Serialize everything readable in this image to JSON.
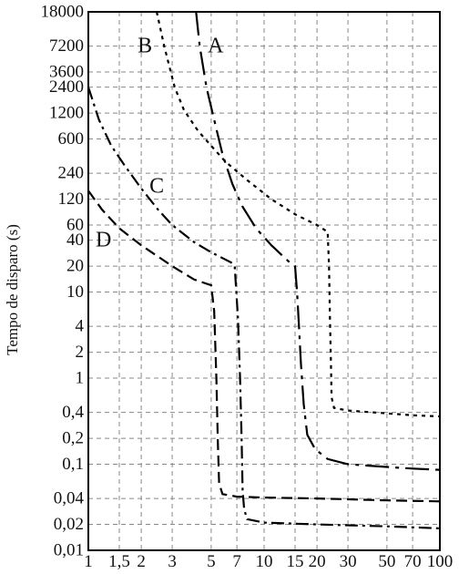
{
  "chart_data": {
    "type": "line",
    "title": "",
    "xlabel": "",
    "ylabel": "Tempo de disparo (s)",
    "xscale": "log",
    "yscale": "log",
    "xlim": [
      1,
      100
    ],
    "ylim": [
      0.01,
      18000
    ],
    "grid": true,
    "x_ticks": [
      {
        "v": 1,
        "label": "1"
      },
      {
        "v": 1.5,
        "label": "1,5"
      },
      {
        "v": 2,
        "label": "2"
      },
      {
        "v": 3,
        "label": "3"
      },
      {
        "v": 5,
        "label": "5"
      },
      {
        "v": 7,
        "label": "7"
      },
      {
        "v": 10,
        "label": "10"
      },
      {
        "v": 15,
        "label": "15"
      },
      {
        "v": 20,
        "label": "20"
      },
      {
        "v": 30,
        "label": "30"
      },
      {
        "v": 50,
        "label": "50"
      },
      {
        "v": 70,
        "label": "70"
      },
      {
        "v": 100,
        "label": "100"
      }
    ],
    "y_ticks": [
      {
        "v": 18000,
        "label": "18000"
      },
      {
        "v": 7200,
        "label": "7200"
      },
      {
        "v": 3600,
        "label": "3600"
      },
      {
        "v": 2400,
        "label": "2400"
      },
      {
        "v": 1200,
        "label": "1200"
      },
      {
        "v": 600,
        "label": "600"
      },
      {
        "v": 240,
        "label": "240"
      },
      {
        "v": 120,
        "label": "120"
      },
      {
        "v": 60,
        "label": "60"
      },
      {
        "v": 40,
        "label": "40"
      },
      {
        "v": 20,
        "label": "20"
      },
      {
        "v": 10,
        "label": "10"
      },
      {
        "v": 4,
        "label": "4"
      },
      {
        "v": 2,
        "label": "2"
      },
      {
        "v": 1,
        "label": "1"
      },
      {
        "v": 0.4,
        "label": "0,4"
      },
      {
        "v": 0.2,
        "label": "0,2"
      },
      {
        "v": 0.1,
        "label": "0,1"
      },
      {
        "v": 0.04,
        "label": "0,04"
      },
      {
        "v": 0.02,
        "label": "0,02"
      },
      {
        "v": 0.01,
        "label": "0,01"
      }
    ],
    "series": [
      {
        "name": "A",
        "dash": "26 7 4 7",
        "label_at": [
          5.3,
          7200
        ],
        "points": [
          [
            4.1,
            18000
          ],
          [
            4.3,
            7200
          ],
          [
            4.7,
            2400
          ],
          [
            5.2,
            1000
          ],
          [
            5.8,
            400
          ],
          [
            6.6,
            180
          ],
          [
            7.5,
            100
          ],
          [
            9,
            55
          ],
          [
            11,
            35
          ],
          [
            14,
            22
          ],
          [
            15,
            20
          ],
          [
            15.4,
            10
          ],
          [
            15.8,
            4
          ],
          [
            16.2,
            1.5
          ],
          [
            16.8,
            0.5
          ],
          [
            17.6,
            0.22
          ],
          [
            19.5,
            0.15
          ],
          [
            23,
            0.115
          ],
          [
            30,
            0.1
          ],
          [
            50,
            0.093
          ],
          [
            70,
            0.089
          ],
          [
            100,
            0.086
          ]
        ]
      },
      {
        "name": "B",
        "dash": "4 5",
        "label_at": [
          2.1,
          7200
        ],
        "points": [
          [
            2.45,
            18000
          ],
          [
            2.7,
            7200
          ],
          [
            3.1,
            2400
          ],
          [
            3.5,
            1300
          ],
          [
            4.2,
            750
          ],
          [
            5,
            500
          ],
          [
            6,
            330
          ],
          [
            8,
            200
          ],
          [
            11,
            120
          ],
          [
            15,
            80
          ],
          [
            20,
            60
          ],
          [
            23,
            50
          ],
          [
            23.4,
            20
          ],
          [
            23.7,
            5
          ],
          [
            24,
            1.5
          ],
          [
            24.2,
            0.6
          ],
          [
            25,
            0.45
          ],
          [
            30,
            0.42
          ],
          [
            50,
            0.39
          ],
          [
            70,
            0.37
          ],
          [
            100,
            0.36
          ]
        ]
      },
      {
        "name": "C",
        "dash": "14 5 3 5",
        "label_at": [
          2.45,
          170
        ],
        "points": [
          [
            1,
            2400
          ],
          [
            1.15,
            1000
          ],
          [
            1.35,
            500
          ],
          [
            1.6,
            300
          ],
          [
            2,
            160
          ],
          [
            2.5,
            90
          ],
          [
            3,
            60
          ],
          [
            4,
            38
          ],
          [
            5,
            29
          ],
          [
            6.5,
            22
          ],
          [
            6.8,
            20
          ],
          [
            7.1,
            5
          ],
          [
            7.3,
            1
          ],
          [
            7.45,
            0.2
          ],
          [
            7.55,
            0.05
          ],
          [
            7.7,
            0.03
          ],
          [
            8,
            0.023
          ],
          [
            10,
            0.021
          ],
          [
            20,
            0.02
          ],
          [
            50,
            0.019
          ],
          [
            100,
            0.018
          ]
        ]
      },
      {
        "name": "D",
        "dash": "12 6",
        "label_at": [
          1.22,
          40
        ],
        "points": [
          [
            1,
            150
          ],
          [
            1.2,
            90
          ],
          [
            1.5,
            55
          ],
          [
            2,
            35
          ],
          [
            3,
            20
          ],
          [
            4,
            14
          ],
          [
            5,
            12
          ],
          [
            5.2,
            6
          ],
          [
            5.35,
            1
          ],
          [
            5.45,
            0.2
          ],
          [
            5.55,
            0.06
          ],
          [
            5.8,
            0.045
          ],
          [
            7,
            0.042
          ],
          [
            10,
            0.041
          ],
          [
            20,
            0.04
          ],
          [
            50,
            0.038
          ],
          [
            100,
            0.037
          ]
        ]
      }
    ]
  }
}
